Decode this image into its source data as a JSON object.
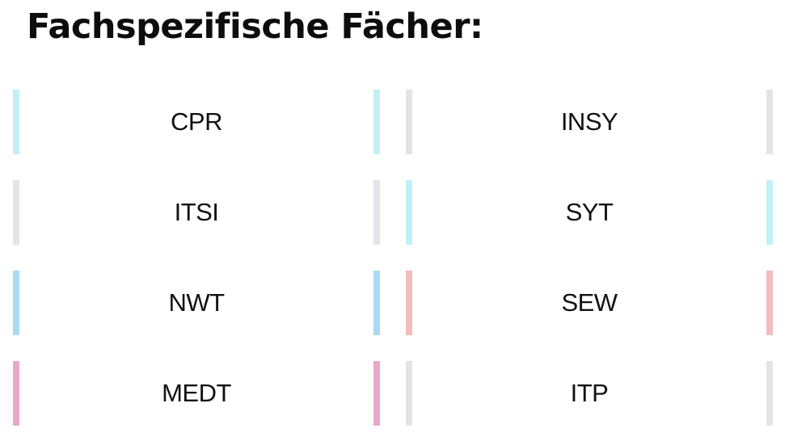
{
  "title": "Fachspezifische Fächer:",
  "subjects": [
    {
      "label": "CPR",
      "color": "#c2f0f7"
    },
    {
      "label": "INSY",
      "color": "#e4e4e8"
    },
    {
      "label": "ITSI",
      "color": "#e4e4e8"
    },
    {
      "label": "SYT",
      "color": "#c2f0f7"
    },
    {
      "label": "NWT",
      "color": "#a9daf4"
    },
    {
      "label": "SEW",
      "color": "#f3bcbc"
    },
    {
      "label": "MEDT",
      "color": "#e8a8c9"
    },
    {
      "label": "ITP",
      "color": "#e4e4e8"
    }
  ]
}
